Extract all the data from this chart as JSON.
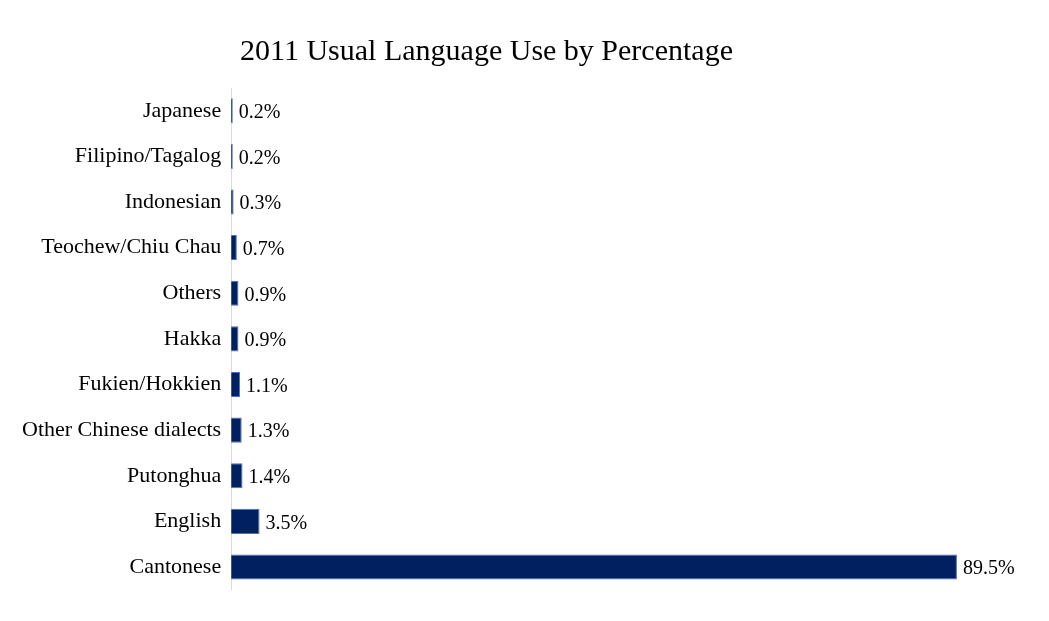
{
  "chart_data": {
    "type": "bar",
    "orientation": "horizontal",
    "title": "2011 Usual Language Use by Percentage",
    "categories": [
      "Japanese",
      "Filipino/Tagalog",
      "Indonesian",
      "Teochew/Chiu Chau",
      "Others",
      "Hakka",
      "Fukien/Hokkien",
      "Other Chinese dialects",
      "Putonghua",
      "English",
      "Cantonese"
    ],
    "values": [
      0.2,
      0.2,
      0.3,
      0.7,
      0.9,
      0.9,
      1.1,
      1.3,
      1.4,
      3.5,
      89.5
    ],
    "value_labels": [
      "0.2%",
      "0.2%",
      "0.3%",
      "0.7%",
      "0.9%",
      "0.9%",
      "1.1%",
      "1.3%",
      "1.4%",
      "3.5%",
      "89.5%"
    ],
    "color": "#002060",
    "grid": false,
    "legend": false
  }
}
